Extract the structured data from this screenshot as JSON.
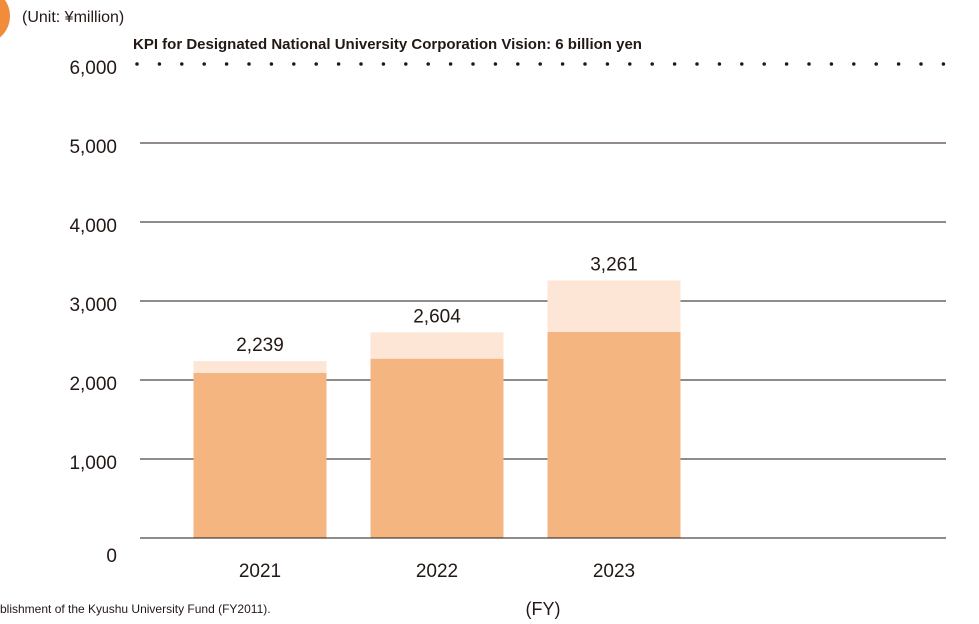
{
  "chart_data": {
    "type": "stacked_bar",
    "unit_label": "(Unit: ¥million)",
    "kpi_line": {
      "value": 6000,
      "label": "KPI for Designated National University Corporation Vision: 6 billion yen"
    },
    "categories": [
      "2021",
      "2022",
      "2023"
    ],
    "series": [
      {
        "color": "#f5b581",
        "values": [
          2090,
          2270,
          2610
        ]
      },
      {
        "color": "#fde6d5",
        "values": [
          149,
          334,
          651
        ]
      }
    ],
    "totals": [
      2239,
      2604,
      3261
    ],
    "total_labels": [
      "2,239",
      "2,604",
      "3,261"
    ],
    "ylim": [
      0,
      6000
    ],
    "yticks": [
      0,
      {
        "value": 1000,
        "label": "1,000"
      },
      {
        "value": 2000,
        "label": "2,000"
      },
      {
        "value": 3000,
        "label": "3,000"
      },
      {
        "value": 4000,
        "label": "4,000"
      },
      {
        "value": 5000,
        "label": "5,000"
      },
      {
        "value": 6000,
        "label": "6,000"
      }
    ],
    "grid": true,
    "x_label": "(FY)",
    "footnote": "blishment of the Kyushu University Fund (FY2011)."
  }
}
